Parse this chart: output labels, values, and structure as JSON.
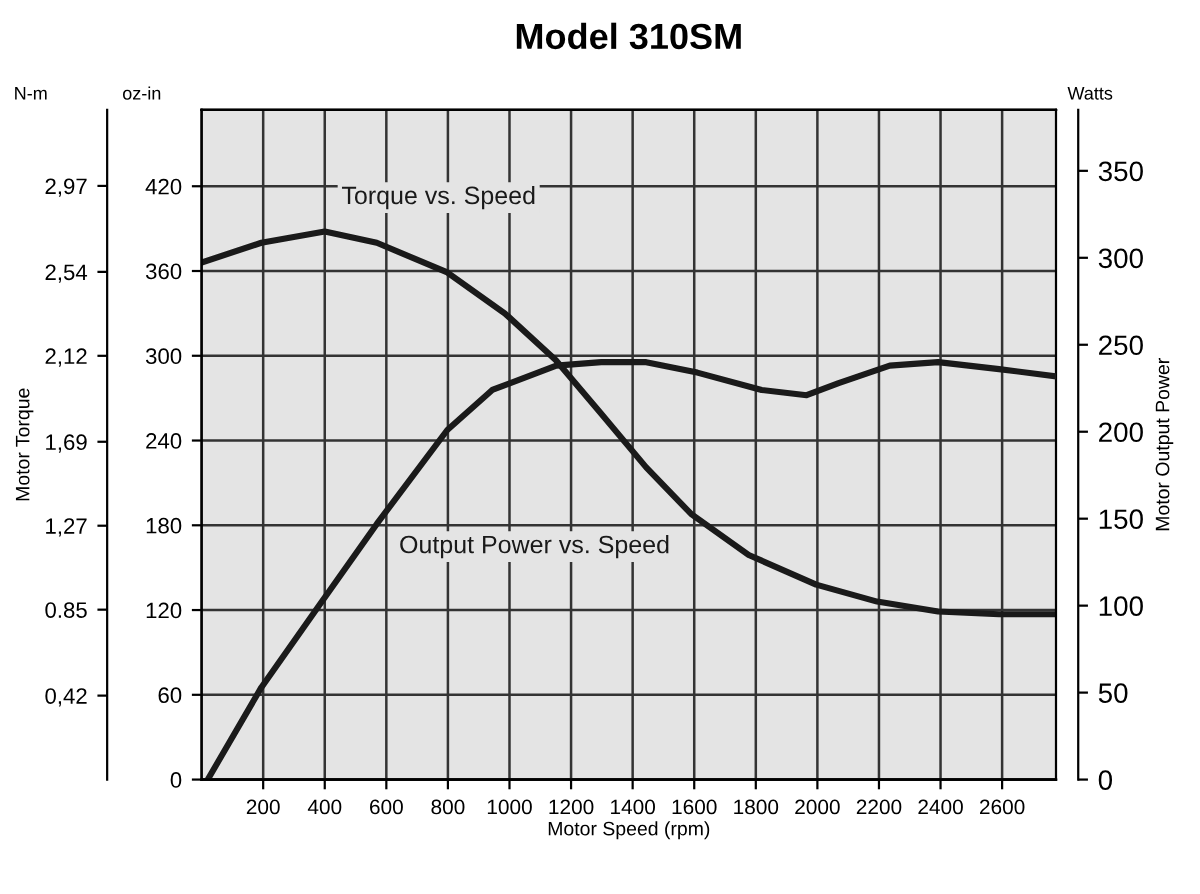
{
  "chart_data": {
    "type": "line",
    "title": "Model 310SM",
    "xlabel": "Motor Speed (rpm)",
    "ylabel": "Motor Torque",
    "y2label": "Motor Output Power",
    "annotations": [
      "N-m",
      "oz-in",
      "Watts"
    ],
    "series": [
      {
        "name": "Torque vs. Speed",
        "color": "#1a1a1a",
        "x": [
          0,
          194,
          400,
          569,
          798,
          985,
          1150,
          1298,
          1444,
          1590,
          1777,
          1996,
          2194,
          2392,
          2590,
          2767
        ],
        "values": [
          366,
          380,
          388,
          380,
          359,
          330,
          297,
          259,
          221,
          188,
          159,
          138,
          126,
          119,
          117,
          117
        ]
      },
      {
        "name": "Output Power vs. Speed",
        "color": "#1a1a1a",
        "axis": "y2",
        "x": [
          20,
          194,
          381,
          569,
          798,
          944,
          1152,
          1298,
          1444,
          1610,
          1819,
          1965,
          2069,
          2235,
          2392,
          2590,
          2767
        ],
        "values": [
          0,
          53,
          100,
          147,
          201,
          224,
          238,
          240,
          240,
          234,
          224,
          221,
          228,
          238,
          240,
          236,
          232
        ]
      }
    ],
    "xlim": [
      0,
      2775
    ],
    "xticks": [
      200,
      400,
      600,
      800,
      1000,
      1200,
      1400,
      1600,
      1800,
      2000,
      2200,
      2400,
      2600
    ],
    "ylim": [
      0,
      474
    ],
    "yticks": [
      0,
      60,
      120,
      180,
      240,
      300,
      360,
      420
    ],
    "y2lim": [
      0,
      385
    ],
    "y2ticks": [
      0,
      50,
      100,
      150,
      200,
      250,
      300,
      350
    ],
    "y3lim": [
      0,
      3.35
    ],
    "y3ticks": [
      {
        "value": 0.42,
        "label": "0,42"
      },
      {
        "value": 0.85,
        "label": "0.85"
      },
      {
        "value": 1.27,
        "label": "1,27"
      },
      {
        "value": 1.69,
        "label": "1,69"
      },
      {
        "value": 2.12,
        "label": "2,12"
      },
      {
        "value": 2.54,
        "label": "2,54"
      },
      {
        "value": 2.97,
        "label": "2,97"
      }
    ],
    "grid": true,
    "legend": false,
    "marker": "none",
    "line_style": "solid"
  }
}
